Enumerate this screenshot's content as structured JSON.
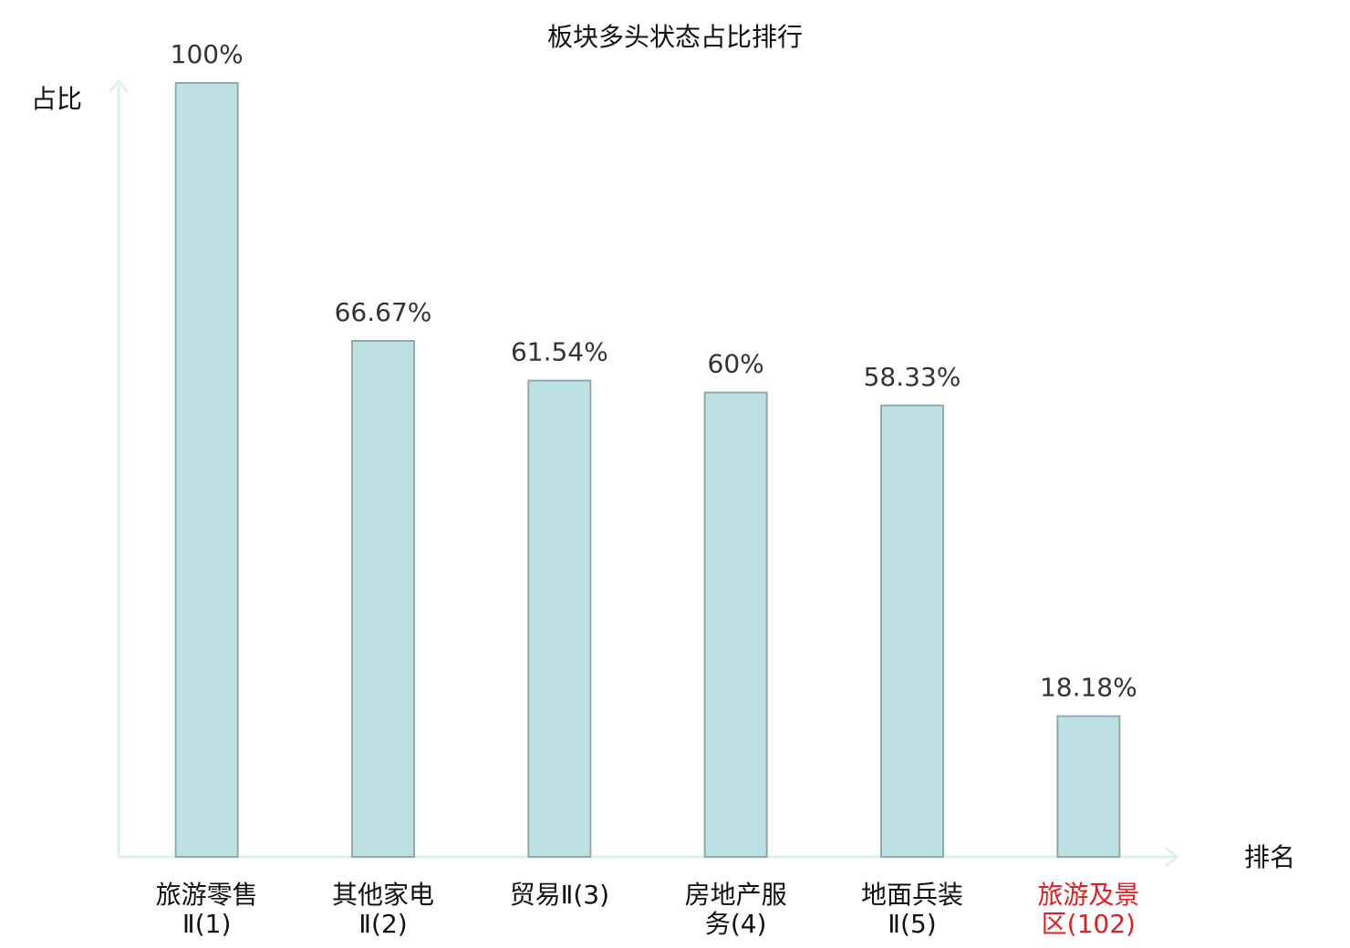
{
  "chart_data": {
    "type": "bar",
    "title": "板块多头状态占比排行",
    "y_axis_label": "占比",
    "x_axis_label": "排名",
    "categories": [
      "旅游零售Ⅱ(1)",
      "其他家电Ⅱ(2)",
      "贸易Ⅱ(3)",
      "房地产服务(4)",
      "地面兵装Ⅱ(5)",
      "旅游及景区(102)"
    ],
    "category_colors": [
      "#111111",
      "#111111",
      "#111111",
      "#111111",
      "#111111",
      "#e02020"
    ],
    "values": [
      100,
      66.67,
      61.54,
      60,
      58.33,
      18.18
    ],
    "value_labels": [
      "100%",
      "66.67%",
      "61.54%",
      "60%",
      "58.33%",
      "18.18%"
    ],
    "color": "#bde0e3",
    "edge_color": "#8fa9ad",
    "axis_color": "#dff0ee",
    "ylim": [
      0,
      100
    ]
  }
}
